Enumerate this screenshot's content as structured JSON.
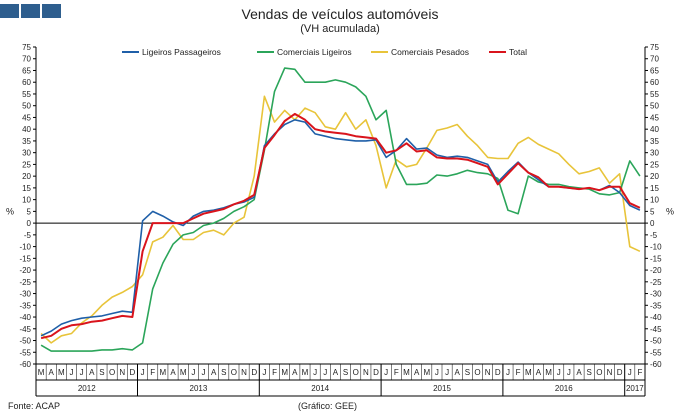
{
  "header": {
    "title": "Vendas de veículos automóveis",
    "subtitle": "(VH acumulada)"
  },
  "footer": {
    "source": "Fonte: ACAP",
    "credit": "(Gráfico: GEE)"
  },
  "chart_data": {
    "type": "line",
    "title": "Vendas de veículos automóveis",
    "subtitle": "(VH acumulada)",
    "ylabel": "%",
    "ylim": [
      -60,
      75
    ],
    "ytick_step": 5,
    "grid": false,
    "legend_position": "top",
    "month_labels": [
      "M",
      "A",
      "M",
      "J",
      "J",
      "A",
      "S",
      "O",
      "N",
      "D",
      "J",
      "F",
      "M",
      "A",
      "M",
      "J",
      "J",
      "A",
      "S",
      "O",
      "N",
      "D",
      "J",
      "F",
      "M",
      "A",
      "M",
      "J",
      "J",
      "A",
      "S",
      "O",
      "N",
      "D",
      "J",
      "F",
      "M",
      "A",
      "M",
      "J",
      "J",
      "A",
      "S",
      "O",
      "N",
      "D",
      "J",
      "F",
      "M",
      "A",
      "M",
      "J",
      "J",
      "A",
      "S",
      "O",
      "N",
      "D",
      "J",
      "F"
    ],
    "year_groups": [
      {
        "label": "2012",
        "start": 0,
        "end": 9
      },
      {
        "label": "2013",
        "start": 10,
        "end": 21
      },
      {
        "label": "2014",
        "start": 22,
        "end": 33
      },
      {
        "label": "2015",
        "start": 34,
        "end": 45
      },
      {
        "label": "2016",
        "start": 46,
        "end": 57
      },
      {
        "label": "2017",
        "start": 58,
        "end": 59
      }
    ],
    "series": [
      {
        "name": "Ligeiros Passageiros",
        "color": "#1F5FA8",
        "values": [
          -48,
          -46,
          -43,
          -41.5,
          -40.5,
          -40,
          -39.5,
          -38.5,
          -37.5,
          -38,
          1,
          5,
          3,
          0.5,
          -1,
          3,
          5,
          5.5,
          6.5,
          8,
          9,
          11,
          33,
          38,
          42,
          44,
          43,
          38,
          37,
          36,
          35.5,
          35,
          35,
          35.5,
          28,
          31,
          36,
          31.5,
          32,
          29,
          28,
          28.5,
          28,
          26.5,
          25,
          17.5,
          22,
          26,
          21.5,
          18.5,
          15.5,
          15.5,
          15,
          14.5,
          15,
          14,
          16,
          13,
          7.5,
          5.5
        ]
      },
      {
        "name": "Comerciais Ligeiros",
        "color": "#2BA55A",
        "values": [
          -52,
          -54.5,
          -54.5,
          -54.5,
          -54.5,
          -54.5,
          -54,
          -54,
          -53.5,
          -54,
          -51,
          -28,
          -17,
          -9,
          -5,
          -4,
          -1,
          0,
          2,
          5,
          7,
          10,
          31,
          56,
          66,
          65.5,
          60,
          60,
          60,
          61,
          60,
          58,
          54,
          44,
          48,
          25,
          16.5,
          16.5,
          17,
          20.5,
          20,
          21,
          22.5,
          21.5,
          21,
          19,
          5.5,
          4,
          20,
          17.5,
          16.5,
          16.5,
          15.5,
          15,
          14.5,
          12.5,
          12,
          13,
          26.5,
          20
        ]
      },
      {
        "name": "Comerciais Pesados",
        "color": "#E8C43A",
        "values": [
          -47,
          -51,
          -48,
          -47,
          -42.5,
          -39.5,
          -35,
          -31.5,
          -29.5,
          -27,
          -22,
          -8,
          -6,
          -1,
          -7,
          -7,
          -4,
          -3,
          -5,
          0,
          2.5,
          20,
          54,
          43,
          48,
          44,
          49,
          47,
          41,
          40,
          47,
          40,
          44,
          33,
          15,
          27,
          24,
          25,
          32,
          39.5,
          40.5,
          42,
          37,
          33,
          28,
          27.5,
          27.5,
          34,
          36.5,
          33.5,
          31.5,
          29.5,
          25,
          21,
          22,
          23.5,
          17,
          21,
          -10,
          -12
        ]
      },
      {
        "name": "Total",
        "color": "#D9141C",
        "values": [
          -49,
          -48,
          -45,
          -43.5,
          -43,
          -42,
          -41.5,
          -40.5,
          -39.5,
          -40,
          -12,
          0,
          0,
          0,
          0,
          2,
          4,
          5,
          6,
          8,
          9.5,
          12,
          32,
          37.5,
          43.5,
          46.5,
          44,
          40,
          39,
          38.5,
          38,
          37,
          36.5,
          36,
          30,
          31,
          34,
          30.5,
          31,
          28,
          27.5,
          27.5,
          27,
          25.5,
          24,
          16.5,
          21,
          25.5,
          21.5,
          19.5,
          15.5,
          15.5,
          15,
          14.5,
          15,
          14,
          15.5,
          15.5,
          8.5,
          6.5
        ]
      }
    ]
  }
}
